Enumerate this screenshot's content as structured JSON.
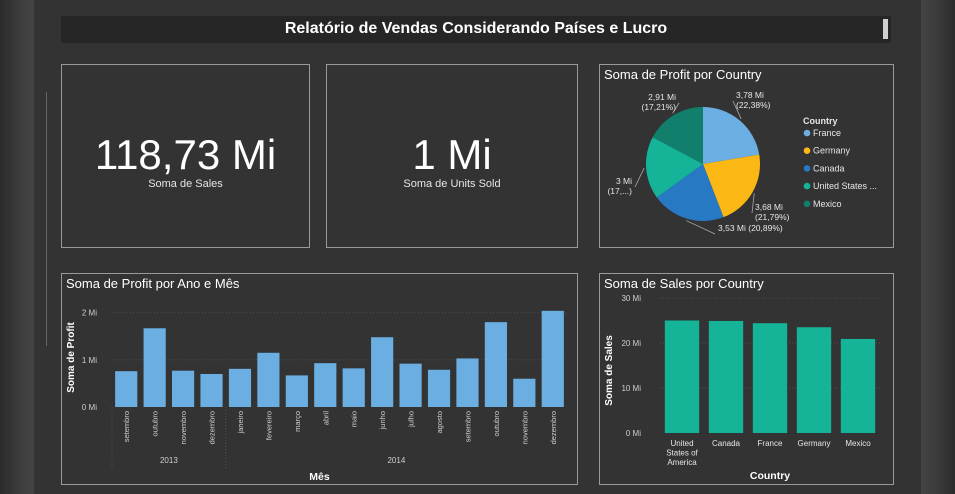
{
  "header": {
    "title": "Relatório de Vendas Considerando Países e Lucro"
  },
  "kpis": [
    {
      "value": "118,73 Mi",
      "label": "Soma de  Sales"
    },
    {
      "value": "1 Mi",
      "label": "Soma de Units Sold"
    }
  ],
  "chart_data": [
    {
      "type": "pie",
      "title": "Soma de Profit por Country",
      "legend_title": "Country",
      "legend_position": "right",
      "slices": [
        {
          "name": "France",
          "legend_label": "France",
          "value": 3.78,
          "label_value": "3,78 Mi",
          "label_pct": "(22,38%)",
          "color": "#6aaee2"
        },
        {
          "name": "Germany",
          "legend_label": "Germany",
          "value": 3.68,
          "label_value": "3,68 Mi",
          "label_pct": "(21,79%)",
          "color": "#fbb713"
        },
        {
          "name": "Canada",
          "legend_label": "Canada",
          "value": 3.53,
          "label_value": "3,53 Mi (20,89%)",
          "label_pct": "",
          "color": "#2779c4"
        },
        {
          "name": "United States of America",
          "legend_label": "United States ...",
          "value": 3.0,
          "label_value": "3 Mi",
          "label_pct": "(17,...)",
          "color": "#15b499"
        },
        {
          "name": "Mexico",
          "legend_label": "Mexico",
          "value": 2.91,
          "label_value": "2,91 Mi",
          "label_pct": "(17,21%)",
          "color": "#127f6d"
        }
      ]
    },
    {
      "type": "bar",
      "title": "Soma de Profit por Ano e Mês",
      "xlabel": "Mês",
      "ylabel": "Soma de Profit",
      "ylim": [
        0,
        2.1
      ],
      "yticks": [
        0,
        1,
        2
      ],
      "ytick_labels": [
        "0 Mi",
        "1 Mi",
        "2 Mi"
      ],
      "bar_color": "#6aaee2",
      "groups": [
        {
          "label": "2013",
          "start": 0,
          "count": 4
        },
        {
          "label": "2014",
          "start": 4,
          "count": 12
        }
      ],
      "categories": [
        "setembro",
        "outubro",
        "novembro",
        "dezembro",
        "janeiro",
        "fevereiro",
        "março",
        "abril",
        "maio",
        "junho",
        "julho",
        "agosto",
        "setembro",
        "outubro",
        "novembro",
        "dezembro"
      ],
      "values": [
        0.76,
        1.67,
        0.77,
        0.7,
        0.81,
        1.15,
        0.67,
        0.93,
        0.82,
        1.48,
        0.92,
        0.79,
        1.03,
        1.8,
        0.6,
        2.04
      ]
    },
    {
      "type": "bar",
      "title": "Soma de Sales por Country",
      "xlabel": "Country",
      "ylabel": "Soma de Sales",
      "ylim": [
        0,
        30
      ],
      "yticks": [
        0,
        10,
        20,
        30
      ],
      "ytick_labels": [
        "0 Mi",
        "10 Mi",
        "20 Mi",
        "30 Mi"
      ],
      "bar_color": "#15b499",
      "categories": [
        "United States of America",
        "Canada",
        "France",
        "Germany",
        "Mexico"
      ],
      "category_lines": [
        [
          "United",
          "States of",
          "America"
        ],
        [
          "Canada"
        ],
        [
          "France"
        ],
        [
          "Germany"
        ],
        [
          "Mexico"
        ]
      ],
      "values": [
        25.0,
        24.9,
        24.4,
        23.5,
        20.9
      ]
    }
  ]
}
